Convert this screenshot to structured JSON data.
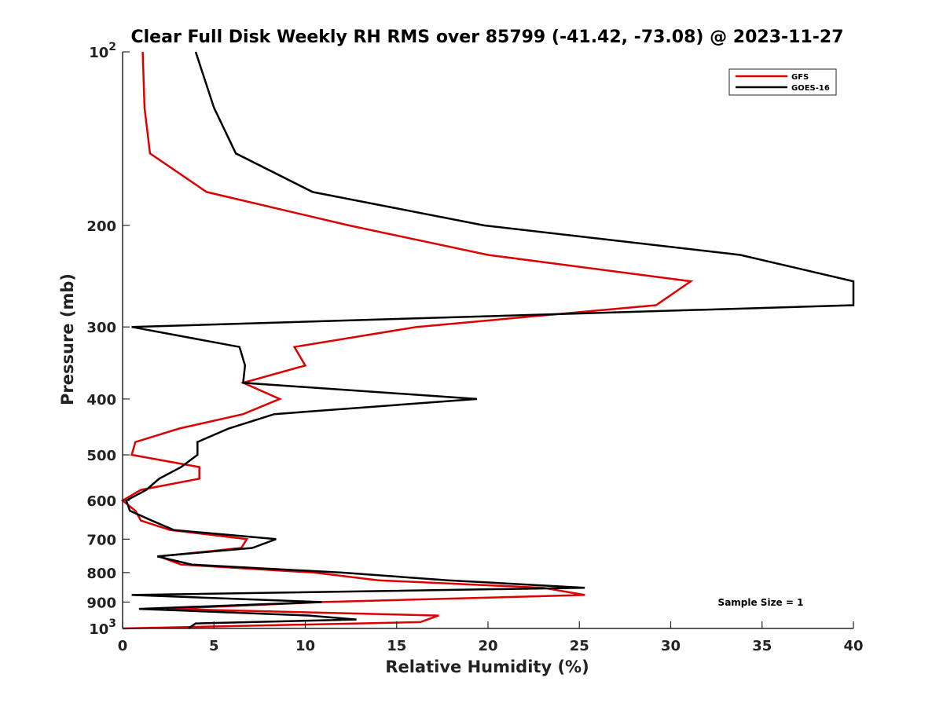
{
  "chart_data": {
    "type": "line",
    "title": "Clear Full Disk Weekly RH RMS over 85799 (-41.42, -73.08) @ 2023-11-27",
    "xlabel": "Relative Humidity (%)",
    "ylabel": "Pressure (mb)",
    "xlim": [
      0,
      40
    ],
    "ylim": [
      100,
      1000
    ],
    "yscale": "log",
    "yreversed": true,
    "xticks": [
      0,
      5,
      10,
      15,
      20,
      25,
      30,
      35,
      40
    ],
    "xtick_labels": [
      "0",
      "5",
      "10",
      "15",
      "20",
      "25",
      "30",
      "35",
      "40"
    ],
    "yticks": [
      {
        "value": 100,
        "base": "10",
        "exp": "2"
      },
      {
        "value": 200,
        "label": "200"
      },
      {
        "value": 300,
        "label": "300"
      },
      {
        "value": 400,
        "label": "400"
      },
      {
        "value": 500,
        "label": "500"
      },
      {
        "value": 600,
        "label": "600"
      },
      {
        "value": 700,
        "label": "700"
      },
      {
        "value": 800,
        "label": "800"
      },
      {
        "value": 900,
        "label": "900"
      },
      {
        "value": 1000,
        "base": "10",
        "exp": "3"
      }
    ],
    "grid": false,
    "legend_position": "top-right",
    "annotation": "Sample Size = 1",
    "series": [
      {
        "name": "GFS",
        "color": "#dd0000",
        "points": [
          [
            1.1,
            100
          ],
          [
            1.2,
            125
          ],
          [
            1.5,
            150
          ],
          [
            4.6,
            175
          ],
          [
            12.4,
            200
          ],
          [
            20,
            225
          ],
          [
            31.1,
            250
          ],
          [
            29.2,
            275
          ],
          [
            16.1,
            300
          ],
          [
            9.4,
            325
          ],
          [
            10,
            350
          ],
          [
            6.6,
            375
          ],
          [
            8.6,
            400
          ],
          [
            6.6,
            425
          ],
          [
            3.1,
            450
          ],
          [
            0.7,
            475
          ],
          [
            0.5,
            500
          ],
          [
            4.2,
            525
          ],
          [
            4.2,
            550
          ],
          [
            1,
            575
          ],
          [
            0,
            600
          ],
          [
            0.7,
            625
          ],
          [
            1,
            650
          ],
          [
            2.6,
            675
          ],
          [
            6.8,
            700
          ],
          [
            6.5,
            725
          ],
          [
            2,
            750
          ],
          [
            3.2,
            775
          ],
          [
            10.5,
            800
          ],
          [
            14,
            825
          ],
          [
            23,
            850
          ],
          [
            25.3,
            875
          ],
          [
            11,
            900
          ],
          [
            2.4,
            925
          ],
          [
            17.3,
            950
          ],
          [
            16.3,
            975
          ],
          [
            0,
            1000
          ]
        ]
      },
      {
        "name": "GOES-16",
        "color": "#000000",
        "points": [
          [
            4,
            100
          ],
          [
            5,
            125
          ],
          [
            6.2,
            150
          ],
          [
            10.4,
            175
          ],
          [
            19.8,
            200
          ],
          [
            33.8,
            225
          ],
          [
            40,
            250
          ],
          [
            40,
            275
          ],
          [
            0.5,
            300
          ],
          [
            6.4,
            325
          ],
          [
            6.7,
            350
          ],
          [
            6.6,
            375
          ],
          [
            19.4,
            400
          ],
          [
            8.3,
            425
          ],
          [
            5.8,
            450
          ],
          [
            4.1,
            475
          ],
          [
            4.1,
            500
          ],
          [
            3.2,
            525
          ],
          [
            2,
            550
          ],
          [
            1.3,
            575
          ],
          [
            0.2,
            600
          ],
          [
            0.4,
            625
          ],
          [
            1.6,
            650
          ],
          [
            2.8,
            675
          ],
          [
            8.4,
            700
          ],
          [
            7.1,
            725
          ],
          [
            1.9,
            750
          ],
          [
            3.8,
            775
          ],
          [
            12,
            800
          ],
          [
            17.8,
            825
          ],
          [
            25.3,
            850
          ],
          [
            0.5,
            875
          ],
          [
            10.9,
            900
          ],
          [
            0.9,
            925
          ],
          [
            10.2,
            950
          ],
          [
            12.8,
            965
          ],
          [
            4,
            980
          ],
          [
            3.6,
            1000
          ]
        ]
      }
    ]
  }
}
